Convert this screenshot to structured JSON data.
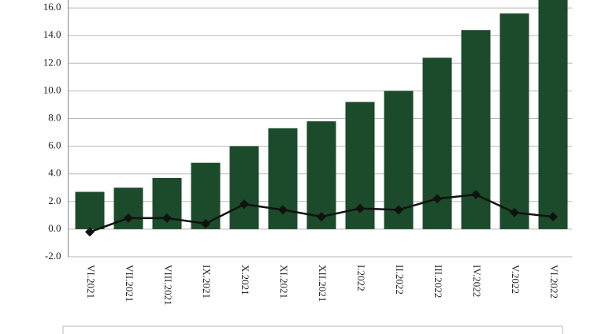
{
  "chart_data": {
    "type": "bar-line",
    "categories": [
      "VI.2021",
      "VII.2021",
      "VIII.2021",
      "IX.2021",
      "X.2021",
      "XI.2021",
      "XII.2021",
      "I.2022",
      "II.2022",
      "III.2022",
      "IV.2022",
      "V.2022",
      "VI.2022"
    ],
    "series": [
      {
        "type": "bar",
        "color": "#1b4b2a",
        "values": [
          2.7,
          3.0,
          3.7,
          4.8,
          6.0,
          7.3,
          7.8,
          9.2,
          10.0,
          12.4,
          14.4,
          15.6,
          16.9
        ]
      },
      {
        "type": "line",
        "color": "#111111",
        "values": [
          -0.2,
          0.8,
          0.8,
          0.4,
          1.8,
          1.4,
          0.9,
          1.5,
          1.4,
          2.2,
          2.5,
          1.2,
          0.9
        ]
      }
    ],
    "ylim": [
      -2,
      16.6
    ],
    "yticks": [
      {
        "value": -2,
        "label": "-2.0"
      },
      {
        "value": 0,
        "label": "0.0"
      },
      {
        "value": 2,
        "label": "2.0"
      },
      {
        "value": 4,
        "label": "4.0"
      },
      {
        "value": 6,
        "label": "6.0"
      },
      {
        "value": 8,
        "label": "8.0"
      },
      {
        "value": 10,
        "label": "10.0"
      },
      {
        "value": 12,
        "label": "12.0"
      },
      {
        "value": 14,
        "label": "14.0"
      },
      {
        "value": 16,
        "label": "16.0"
      }
    ],
    "grid": true
  }
}
